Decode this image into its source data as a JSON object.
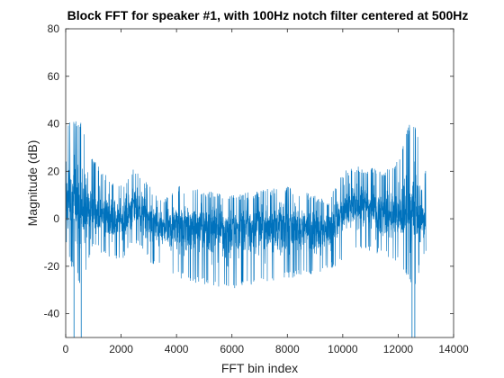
{
  "chart_data": {
    "type": "line",
    "title": "Block FFT for speaker #1, with 100Hz notch filter centered at 500Hz",
    "xlabel": "FFT bin index",
    "ylabel": "Magnitude (dB)",
    "xlim": [
      0,
      14000
    ],
    "ylim": [
      -50,
      80
    ],
    "xticks": [
      0,
      2000,
      4000,
      6000,
      8000,
      10000,
      12000,
      14000
    ],
    "xtick_labels": [
      "0",
      "2000",
      "4000",
      "6000",
      "8000",
      "10000",
      "12000",
      "14000"
    ],
    "yticks": [
      -40,
      -20,
      0,
      20,
      40,
      60,
      80
    ],
    "ytick_labels": [
      "-40",
      "-20",
      "0",
      "20",
      "40",
      "60",
      "80"
    ],
    "grid": false,
    "line_color": "#0072BD",
    "series": [
      {
        "x_range": [
          1,
          13000
        ],
        "envelope": {
          "x": [
            0,
            200,
            400,
            600,
            800,
            1000,
            1500,
            2000,
            2500,
            3000,
            3500,
            4000,
            5000,
            6000,
            7000,
            8000,
            9000,
            9500,
            10000,
            10500,
            11000,
            11500,
            12000,
            12400,
            12600,
            12800,
            13000
          ],
          "upper": [
            40,
            42,
            42,
            40,
            30,
            25,
            18,
            14,
            22,
            14,
            8,
            14,
            12,
            10,
            12,
            14,
            10,
            8,
            20,
            22,
            22,
            20,
            25,
            40,
            42,
            30,
            20
          ],
          "lower": [
            -10,
            -20,
            -25,
            -30,
            -20,
            -12,
            -16,
            -18,
            -10,
            -18,
            -22,
            -25,
            -28,
            -30,
            -28,
            -25,
            -24,
            -22,
            -18,
            -12,
            -14,
            -16,
            -18,
            -26,
            -30,
            -20,
            -16
          ]
        },
        "center": {
          "x": [
            0,
            1000,
            2000,
            2500,
            3000,
            3500,
            4000,
            5000,
            6000,
            7000,
            8000,
            9000,
            9500,
            10000,
            10500,
            11000,
            11500,
            12000,
            12500,
            13000
          ],
          "y": [
            8,
            2,
            0,
            6,
            0,
            -4,
            -3,
            -3,
            -4,
            -3,
            -3,
            -4,
            -4,
            2,
            6,
            4,
            2,
            0,
            4,
            0
          ]
        },
        "spikes": [
          {
            "x": 300,
            "y": -50
          },
          {
            "x": 560,
            "y": -50
          },
          {
            "x": 12500,
            "y": -50
          },
          {
            "x": 12600,
            "y": -50
          }
        ]
      }
    ]
  }
}
